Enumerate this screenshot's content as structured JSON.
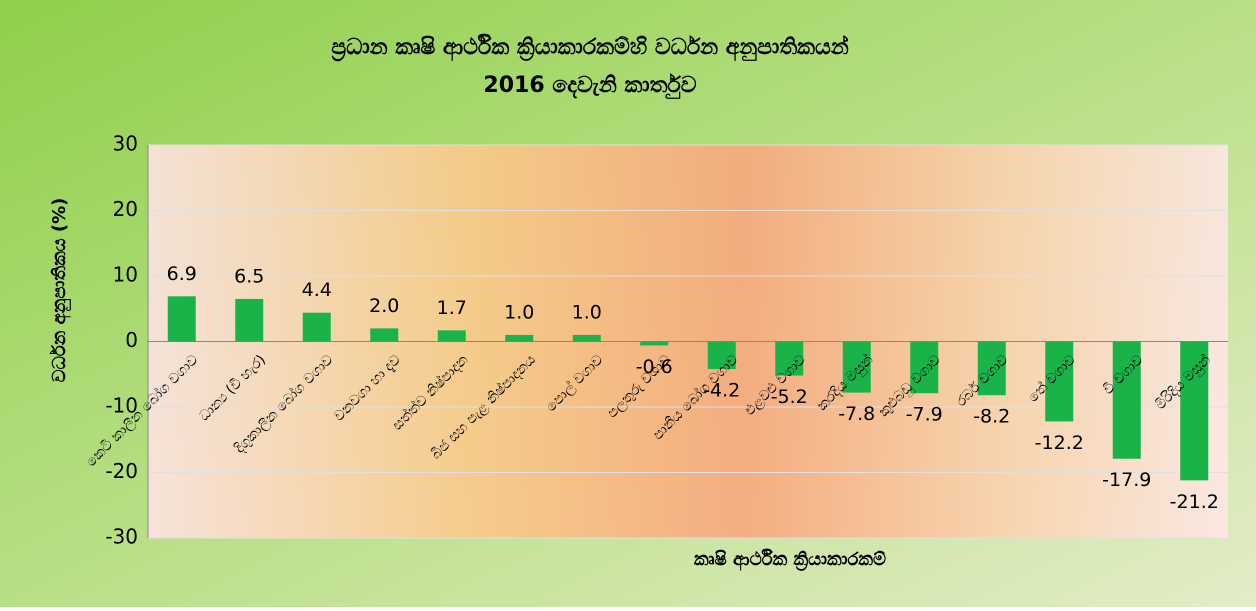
{
  "chart_data": {
    "type": "bar",
    "title": "ප්‍රධාන කෘෂි ආර්ථික ක්‍රියාකාරකම්හි  වර්ධන අනුපාතිකයන්",
    "subtitle": "2016 දෙවැනි කාර්තුව",
    "ylabel": "වර්ධන අනුපාතිකය (%)",
    "xlabel": "කෘෂි ආර්ථික ක්‍රියාකාරකම්",
    "categories": [
      "කෙටි කාලීන බෝග වගාව",
      "ධාන්‍ය (වී හැර)",
      "දිගුකාලීන බෝග වගාව",
      "වනවගා හා දැව",
      "සත්ත්ව නිෂ්පාදන",
      "බීජ සහ පැළ නිෂ්පාදනය",
      "පොල් වගාව",
      "පලතුරු වගාව",
      "පානීය බෝග වගාව",
      "එළවළු වගාව",
      "කරදිය මසුන්",
      "කුළුබඩු වගාව",
      "රබර් වගාව",
      "තේ වගාව",
      "වී වගාව",
      "මිරිදිය මසුන්"
    ],
    "values": [
      6.9,
      6.5,
      4.4,
      2.0,
      1.7,
      1.0,
      1.0,
      -0.6,
      -4.2,
      -5.2,
      -7.8,
      -7.9,
      -8.2,
      -12.2,
      -17.9,
      -21.2
    ],
    "value_labels": [
      "6.9",
      "6.5",
      "4.4",
      "2.0",
      "1.7",
      "1.0",
      "1.0",
      "-0.6",
      "-4.2",
      "-5.2",
      "-7.8",
      "-7.9",
      "-8.2",
      "-12.2",
      "-17.9",
      "-21.2"
    ],
    "color": "#19b34a",
    "ylim": [
      -30,
      30
    ],
    "yticks": [
      -30,
      -20,
      -10,
      0,
      10,
      20,
      30
    ],
    "grid": true
  }
}
